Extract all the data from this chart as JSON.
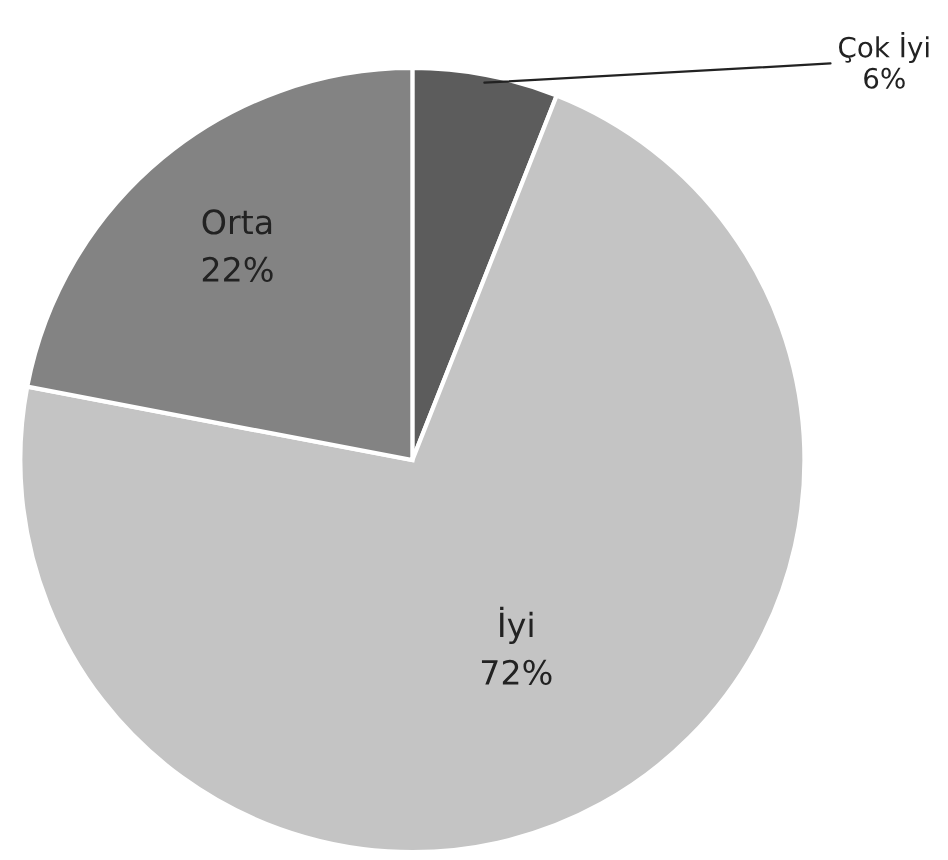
{
  "chart_data": {
    "type": "pie",
    "categories": [
      "Çok İyi",
      "İyi",
      "Orta"
    ],
    "values": [
      6,
      72,
      22
    ],
    "colors": [
      "#5c5c5c",
      "#c4c4c4",
      "#838383"
    ],
    "value_labels": [
      "6%",
      "72%",
      "22%"
    ],
    "legend": false
  }
}
